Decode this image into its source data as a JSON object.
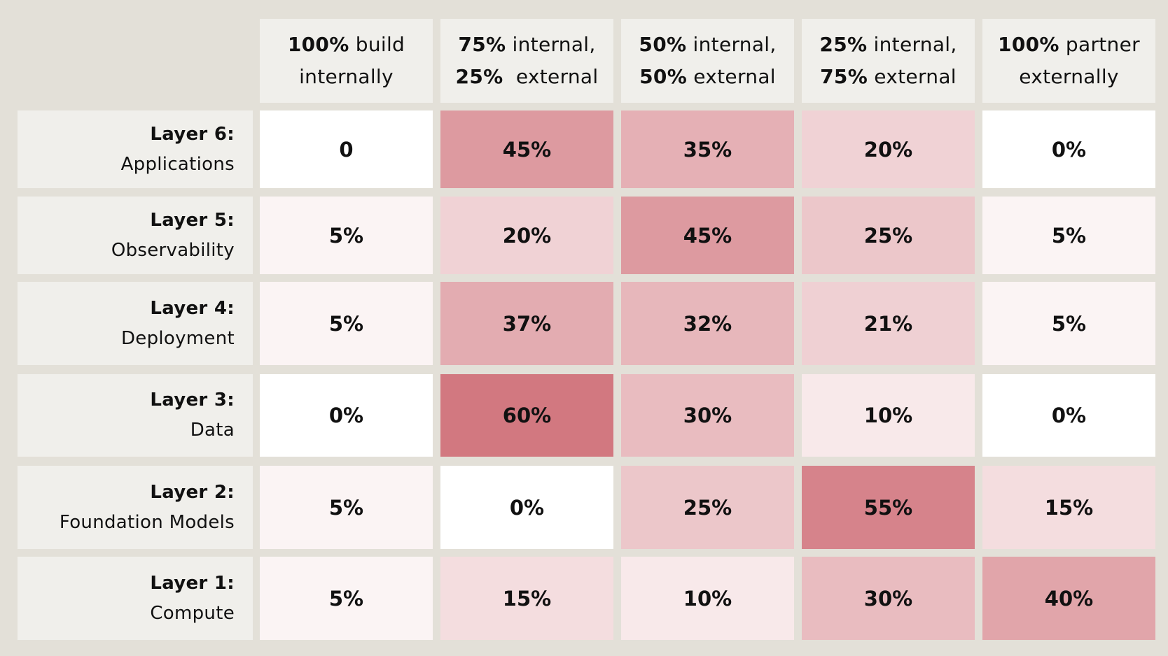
{
  "chart_data": {
    "type": "heatmap",
    "columns": [
      {
        "lead": "100%",
        "rest": " build",
        "line2_lead": "",
        "line2_rest": "internally"
      },
      {
        "lead": "75%",
        "rest": " internal,",
        "line2_lead": "25%",
        "line2_rest": "  external"
      },
      {
        "lead": "50%",
        "rest": " internal,",
        "line2_lead": "50%",
        "line2_rest": " external"
      },
      {
        "lead": "25%",
        "rest": " internal,",
        "line2_lead": "75%",
        "line2_rest": " external"
      },
      {
        "lead": "100%",
        "rest": " partner",
        "line2_lead": "",
        "line2_rest": "externally"
      }
    ],
    "rows": [
      {
        "title": "Layer 6:",
        "subtitle": "Applications",
        "labels": [
          "0",
          "45%",
          "35%",
          "20%",
          "0%"
        ],
        "values": [
          0,
          45,
          35,
          20,
          0
        ]
      },
      {
        "title": "Layer 5:",
        "subtitle": "Observability",
        "labels": [
          "5%",
          "20%",
          "45%",
          "25%",
          "5%"
        ],
        "values": [
          5,
          20,
          45,
          25,
          5
        ]
      },
      {
        "title": "Layer 4:",
        "subtitle": "Deployment",
        "labels": [
          "5%",
          "37%",
          "32%",
          "21%",
          "5%"
        ],
        "values": [
          5,
          37,
          32,
          21,
          5
        ]
      },
      {
        "title": "Layer 3:",
        "subtitle": "Data",
        "labels": [
          "0%",
          "60%",
          "30%",
          "10%",
          "0%"
        ],
        "values": [
          0,
          60,
          30,
          10,
          0
        ]
      },
      {
        "title": "Layer 2:",
        "subtitle": "Foundation Models",
        "labels": [
          "5%",
          "0%",
          "25%",
          "55%",
          "15%"
        ],
        "values": [
          5,
          0,
          25,
          55,
          15
        ]
      },
      {
        "title": "Layer 1:",
        "subtitle": "Compute",
        "labels": [
          "5%",
          "15%",
          "10%",
          "30%",
          "40%"
        ],
        "values": [
          5,
          15,
          10,
          30,
          40
        ]
      }
    ]
  },
  "colors": {
    "background": "#e3e0d8",
    "header_fill": "#f0efeb",
    "scale_low": "#ffffff",
    "scale_high": "#d27880"
  }
}
